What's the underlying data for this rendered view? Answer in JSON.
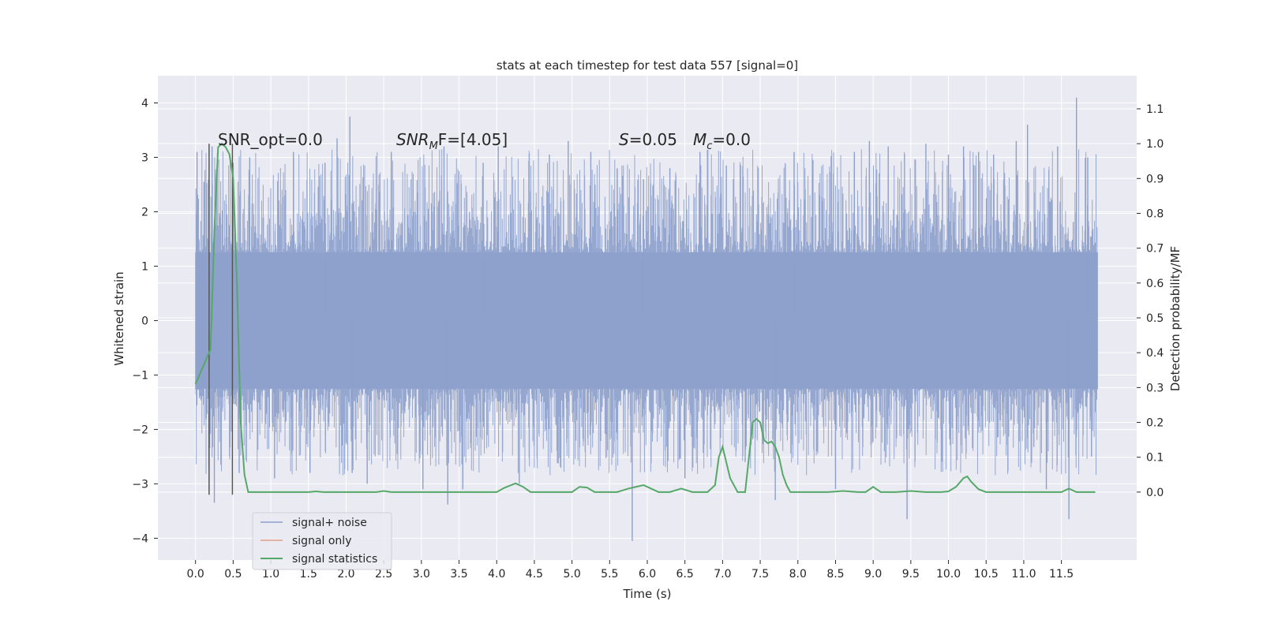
{
  "chart_data": {
    "type": "line",
    "title": "stats at each timestep for test data 557 [signal=0]",
    "xlabel": "Time (s)",
    "ylabel_left": "Whitened strain",
    "ylabel_right": "Detection probability/MF",
    "xlim": [
      -0.5,
      12.5
    ],
    "ylim_left": [
      -4.4,
      4.5
    ],
    "ylim_right": [
      -0.195,
      1.195
    ],
    "x_ticks": [
      0.0,
      0.5,
      1.0,
      1.5,
      2.0,
      2.5,
      3.0,
      3.5,
      4.0,
      4.5,
      5.0,
      5.5,
      6.0,
      6.5,
      7.0,
      7.5,
      8.0,
      8.5,
      9.0,
      9.5,
      10.0,
      10.5,
      11.0,
      11.5
    ],
    "x_tick_labels": [
      "0.0",
      "0.5",
      "1.0",
      "1.5",
      "2.0",
      "2.5",
      "3.0",
      "3.5",
      "4.0",
      "4.5",
      "5.0",
      "5.5",
      "6.0",
      "6.5",
      "7.0",
      "7.5",
      "8.0",
      "8.5",
      "9.0",
      "9.5",
      "10.0",
      "10.5",
      "11.0",
      "11.5"
    ],
    "y_left_ticks": [
      4,
      3,
      2,
      1,
      0,
      -1,
      -2,
      -3,
      -4
    ],
    "y_left_tick_labels": [
      "4",
      "3",
      "2",
      "1",
      "0",
      "−1",
      "−2",
      "−3",
      "−4"
    ],
    "y_right_ticks": [
      1.1,
      1.0,
      0.9,
      0.8,
      0.7,
      0.6,
      0.5,
      0.4,
      0.3,
      0.2,
      0.1,
      0.0
    ],
    "y_right_tick_labels": [
      "1.1",
      "1.0",
      "0.9",
      "0.8",
      "0.7",
      "0.6",
      "0.5",
      "0.4",
      "0.3",
      "0.2",
      "0.1",
      "0.0"
    ],
    "grid": true,
    "legend_placement": "lower-left",
    "series": [
      {
        "name": "signal+ noise",
        "axis": "left",
        "color": "#8da0cb",
        "note_values": "dense whitened-strain noise, x from 0.0 to 11.98 s",
        "x_range": [
          0.0,
          11.98
        ],
        "core_range": [
          -1.25,
          1.25
        ],
        "spikes": [
          [
            0.02,
            3.1
          ],
          [
            0.22,
            3.2
          ],
          [
            0.25,
            -3.35
          ],
          [
            0.5,
            2.9
          ],
          [
            0.58,
            -2.8
          ],
          [
            0.72,
            3.0
          ],
          [
            1.05,
            -2.9
          ],
          [
            1.3,
            3.1
          ],
          [
            1.52,
            -2.8
          ],
          [
            1.72,
            2.9
          ],
          [
            1.88,
            3.35
          ],
          [
            2.05,
            3.75
          ],
          [
            2.08,
            -2.8
          ],
          [
            2.28,
            -3.0
          ],
          [
            2.6,
            3.1
          ],
          [
            3.02,
            -3.1
          ],
          [
            3.3,
            3.2
          ],
          [
            3.35,
            -3.38
          ],
          [
            3.55,
            -3.1
          ],
          [
            3.82,
            2.9
          ],
          [
            4.02,
            3.2
          ],
          [
            4.3,
            -3.0
          ],
          [
            4.7,
            3.05
          ],
          [
            4.95,
            3.3
          ],
          [
            5.25,
            3.1
          ],
          [
            5.6,
            2.8
          ],
          [
            5.8,
            -4.05
          ],
          [
            5.95,
            2.6
          ],
          [
            6.3,
            2.8
          ],
          [
            6.5,
            -2.9
          ],
          [
            6.7,
            3.1
          ],
          [
            7.05,
            2.85
          ],
          [
            7.3,
            -2.6
          ],
          [
            7.7,
            -3.3
          ],
          [
            7.95,
            3.1
          ],
          [
            8.2,
            2.95
          ],
          [
            8.5,
            -3.1
          ],
          [
            8.75,
            3.1
          ],
          [
            8.95,
            3.3
          ],
          [
            9.2,
            3.2
          ],
          [
            9.45,
            -3.65
          ],
          [
            9.7,
            3.25
          ],
          [
            10.0,
            3.05
          ],
          [
            10.2,
            3.2
          ],
          [
            10.4,
            3.1
          ],
          [
            10.6,
            3.05
          ],
          [
            10.9,
            3.3
          ],
          [
            11.05,
            3.6
          ],
          [
            11.3,
            -3.1
          ],
          [
            11.45,
            3.2
          ],
          [
            11.6,
            -3.65
          ],
          [
            11.7,
            4.1
          ],
          [
            11.85,
            3.0
          ],
          [
            11.9,
            -2.5
          ]
        ]
      },
      {
        "name": "signal only",
        "axis": "left",
        "color": "#e5a08a",
        "x": [],
        "y": []
      },
      {
        "name": "signal statistics",
        "axis": "right",
        "color": "#55a868",
        "x": [
          0.0,
          0.1,
          0.2,
          0.25,
          0.3,
          0.35,
          0.4,
          0.45,
          0.5,
          0.55,
          0.6,
          0.65,
          0.7,
          1.0,
          1.5,
          1.6,
          1.7,
          2.0,
          2.4,
          2.5,
          2.6,
          3.0,
          3.5,
          4.0,
          4.1,
          4.25,
          4.35,
          4.45,
          4.6,
          5.0,
          5.1,
          5.2,
          5.3,
          5.4,
          5.6,
          5.75,
          5.85,
          5.95,
          6.05,
          6.15,
          6.3,
          6.45,
          6.6,
          6.7,
          6.8,
          6.9,
          6.95,
          7.0,
          7.1,
          7.2,
          7.3,
          7.4,
          7.45,
          7.5,
          7.55,
          7.6,
          7.65,
          7.7,
          7.75,
          7.8,
          7.85,
          7.9,
          7.95,
          8.0,
          8.1,
          8.4,
          8.6,
          8.8,
          8.9,
          9.0,
          9.1,
          9.3,
          9.5,
          9.7,
          9.9,
          10.0,
          10.1,
          10.2,
          10.25,
          10.3,
          10.4,
          10.5,
          10.7,
          11.0,
          11.5,
          11.6,
          11.7,
          11.8,
          11.95
        ],
        "y": [
          0.31,
          0.36,
          0.41,
          0.75,
          0.99,
          1.0,
          0.99,
          0.97,
          0.9,
          0.6,
          0.2,
          0.05,
          0.0,
          0.0,
          0.0,
          0.002,
          0.0,
          0.0,
          0.0,
          0.003,
          0.0,
          0.0,
          0.0,
          0.0,
          0.012,
          0.025,
          0.015,
          0.0,
          0.0,
          0.0,
          0.015,
          0.013,
          0.0,
          0.0,
          0.0,
          0.01,
          0.015,
          0.02,
          0.01,
          0.0,
          0.0,
          0.01,
          0.0,
          0.0,
          0.0,
          0.02,
          0.1,
          0.13,
          0.04,
          0.0,
          0.0,
          0.2,
          0.21,
          0.2,
          0.15,
          0.14,
          0.145,
          0.13,
          0.1,
          0.05,
          0.02,
          0.0,
          0.0,
          0.0,
          0.0,
          0.0,
          0.003,
          0.0,
          0.0,
          0.015,
          0.0,
          0.0,
          0.003,
          0.0,
          0.0,
          0.002,
          0.015,
          0.04,
          0.045,
          0.03,
          0.008,
          0.0,
          0.0,
          0.0,
          0.0,
          0.01,
          0.0,
          0.0,
          0.0
        ]
      }
    ],
    "vertical_markers": {
      "color": "#555555",
      "x": [
        0.18,
        0.49
      ],
      "y_range": [
        -3.2,
        3.25
      ]
    },
    "annotations": [
      {
        "id": "snr_opt",
        "text": "SNR_opt=0.0",
        "x": 0.2,
        "y": 3.15
      },
      {
        "id": "snr_mf",
        "text_main": "SNR",
        "text_sub": "M",
        "text_rest": "F=[4.05]",
        "x": 2.6,
        "y": 3.15
      },
      {
        "id": "s_value",
        "text_main": "S",
        "text_rest": "=0.05",
        "x": 5.6,
        "y": 3.15
      },
      {
        "id": "mc_value",
        "text_main": "M",
        "text_sub": "c",
        "text_rest": "=0.0",
        "x": 6.6,
        "y": 3.15
      }
    ]
  }
}
